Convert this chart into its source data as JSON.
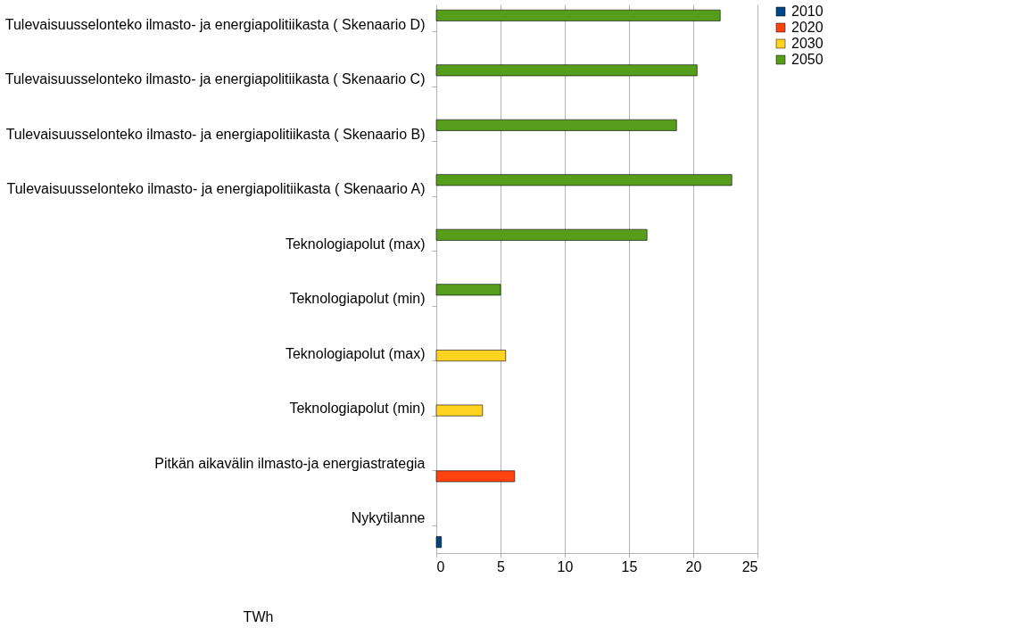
{
  "chart_data": {
    "type": "bar",
    "orientation": "horizontal",
    "xlabel": "TWh",
    "categories": [
      "Tulevaisuusselonteko ilmasto- ja energiapolitiikasta ( Skenaario D)",
      "Tulevaisuusselonteko ilmasto- ja energiapolitiikasta ( Skenaario C)",
      "Tulevaisuusselonteko ilmasto- ja energiapolitiikasta ( Skenaario B)",
      "Tulevaisuusselonteko ilmasto- ja energiapolitiikasta ( Skenaario A)",
      "Teknologiapolut (max)",
      "Teknologiapolut (min)",
      "Teknologiapolut (max)",
      "Teknologiapolut (min)",
      "Pitkän aikavälin ilmasto-ja energiastrategia",
      "Nykytilanne"
    ],
    "series": [
      {
        "name": "2010",
        "color": "#004586",
        "values": [
          null,
          null,
          null,
          null,
          null,
          null,
          null,
          null,
          null,
          0.4
        ]
      },
      {
        "name": "2020",
        "color": "#ff420e",
        "values": [
          null,
          null,
          null,
          null,
          null,
          null,
          null,
          null,
          6.1,
          null
        ]
      },
      {
        "name": "2030",
        "color": "#ffd320",
        "values": [
          null,
          null,
          null,
          null,
          null,
          null,
          5.4,
          3.6,
          null,
          null
        ]
      },
      {
        "name": "2050",
        "color": "#579d1c",
        "values": [
          22.1,
          20.3,
          18.7,
          23.0,
          16.4,
          5.0,
          null,
          null,
          null,
          null
        ]
      }
    ],
    "xlim": [
      0,
      25
    ],
    "xticks": [
      0,
      5,
      10,
      15,
      20,
      25
    ],
    "grid": "x",
    "legend": "right"
  }
}
